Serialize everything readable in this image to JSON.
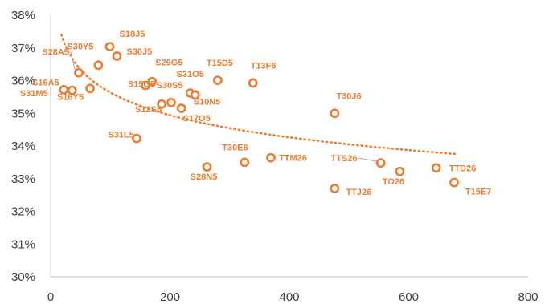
{
  "chart_data": {
    "type": "scatter",
    "title": "",
    "xlabel": "",
    "ylabel": "",
    "xlim": [
      0,
      800
    ],
    "ylim": [
      30,
      38
    ],
    "x_ticks": [
      "0",
      "200",
      "400",
      "600",
      "800"
    ],
    "y_ticks": [
      "30%",
      "31%",
      "32%",
      "33%",
      "34%",
      "35%",
      "36%",
      "37%",
      "38%"
    ],
    "grid": false,
    "legend": "none",
    "colors": {
      "series": "#ED7D31",
      "axis": "#BFBFBF",
      "text": "#404040"
    },
    "trendline": {
      "type": "power",
      "style": "dotted",
      "x_range": [
        18,
        678
      ]
    },
    "series": [
      {
        "points": [
          {
            "label": "S31M5",
            "x": 22,
            "y": 35.72
          },
          {
            "label": "S16A5",
            "x": 36,
            "y": 35.7
          },
          {
            "label": "S28A5",
            "x": 47,
            "y": 36.24
          },
          {
            "label": "S16Y5",
            "x": 66,
            "y": 35.76
          },
          {
            "label": "S30Y5",
            "x": 80,
            "y": 36.47
          },
          {
            "label": "S18J5",
            "x": 99,
            "y": 37.04
          },
          {
            "label": "S30J5",
            "x": 111,
            "y": 36.75
          },
          {
            "label": "S31L5",
            "x": 144,
            "y": 34.23
          },
          {
            "label": "S15G5",
            "x": 159,
            "y": 35.85
          },
          {
            "label": "S29G5",
            "x": 170,
            "y": 35.97
          },
          {
            "label": "S12S5",
            "x": 186,
            "y": 35.28
          },
          {
            "label": "S30S5",
            "x": 202,
            "y": 35.33
          },
          {
            "label": "S17O5",
            "x": 219,
            "y": 35.15
          },
          {
            "label": "S31O5",
            "x": 234,
            "y": 35.62
          },
          {
            "label": "S10N5",
            "x": 242,
            "y": 35.56
          },
          {
            "label": "S28N5",
            "x": 262,
            "y": 33.36
          },
          {
            "label": "T15D5",
            "x": 280,
            "y": 36.01
          },
          {
            "label": "T30E6",
            "x": 325,
            "y": 33.5
          },
          {
            "label": "T13F6",
            "x": 339,
            "y": 35.93
          },
          {
            "label": "TTM26",
            "x": 369,
            "y": 33.64
          },
          {
            "label": "TTJ26",
            "x": 476,
            "y": 32.7
          },
          {
            "label": "T30J6",
            "x": 476,
            "y": 35.0
          },
          {
            "label": "TTS26",
            "x": 553,
            "y": 33.48
          },
          {
            "label": "TO26",
            "x": 585,
            "y": 33.22
          },
          {
            "label": "TTD26",
            "x": 646,
            "y": 33.33
          },
          {
            "label": "T15E7",
            "x": 676,
            "y": 32.88
          }
        ]
      }
    ]
  }
}
